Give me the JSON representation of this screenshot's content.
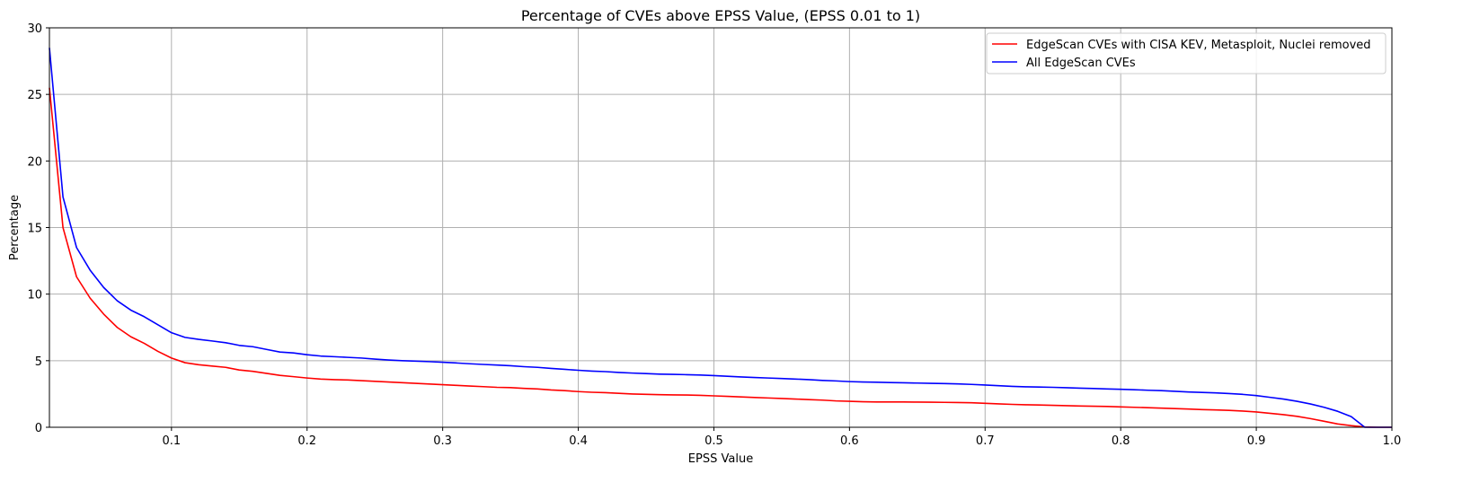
{
  "chart_data": {
    "type": "line",
    "title": "Percentage of CVEs above EPSS Value, (EPSS 0.01 to 1)",
    "xlabel": "EPSS Value",
    "ylabel": "Percentage",
    "xlim": [
      0.01,
      1.0
    ],
    "ylim": [
      0,
      30
    ],
    "xticks": [
      "0.1",
      "0.2",
      "0.3",
      "0.4",
      "0.5",
      "0.6",
      "0.7",
      "0.8",
      "0.9",
      "1.0"
    ],
    "yticks": [
      "0",
      "5",
      "10",
      "15",
      "20",
      "25",
      "30"
    ],
    "grid": true,
    "legend_position": "top-right",
    "x": [
      0.01,
      0.02,
      0.03,
      0.04,
      0.05,
      0.06,
      0.07,
      0.08,
      0.09,
      0.1,
      0.11,
      0.12,
      0.13,
      0.14,
      0.15,
      0.16,
      0.17,
      0.18,
      0.19,
      0.2,
      0.21,
      0.22,
      0.23,
      0.24,
      0.25,
      0.26,
      0.27,
      0.28,
      0.29,
      0.3,
      0.31,
      0.32,
      0.33,
      0.34,
      0.35,
      0.36,
      0.37,
      0.38,
      0.39,
      0.4,
      0.41,
      0.42,
      0.43,
      0.44,
      0.45,
      0.46,
      0.47,
      0.48,
      0.49,
      0.5,
      0.51,
      0.52,
      0.53,
      0.54,
      0.55,
      0.56,
      0.57,
      0.58,
      0.59,
      0.6,
      0.61,
      0.62,
      0.63,
      0.64,
      0.65,
      0.66,
      0.67,
      0.68,
      0.69,
      0.7,
      0.71,
      0.72,
      0.73,
      0.74,
      0.75,
      0.76,
      0.77,
      0.78,
      0.79,
      0.8,
      0.81,
      0.82,
      0.83,
      0.84,
      0.85,
      0.86,
      0.87,
      0.88,
      0.89,
      0.9,
      0.91,
      0.92,
      0.93,
      0.94,
      0.95,
      0.96,
      0.97,
      0.98,
      0.99,
      1.0
    ],
    "series": [
      {
        "name": "EdgeScan CVEs with CISA KEV, Metasploit, Nuclei removed",
        "color": "#ff0000",
        "values": [
          25.5,
          15.0,
          11.3,
          9.7,
          8.5,
          7.5,
          6.8,
          6.3,
          5.7,
          5.2,
          4.85,
          4.7,
          4.6,
          4.5,
          4.3,
          4.2,
          4.05,
          3.9,
          3.8,
          3.7,
          3.62,
          3.58,
          3.55,
          3.5,
          3.45,
          3.4,
          3.35,
          3.3,
          3.25,
          3.2,
          3.15,
          3.1,
          3.05,
          3.0,
          2.98,
          2.92,
          2.88,
          2.8,
          2.75,
          2.68,
          2.63,
          2.6,
          2.55,
          2.5,
          2.47,
          2.45,
          2.43,
          2.42,
          2.4,
          2.36,
          2.32,
          2.28,
          2.24,
          2.2,
          2.16,
          2.12,
          2.08,
          2.04,
          1.98,
          1.95,
          1.92,
          1.9,
          1.9,
          1.9,
          1.89,
          1.88,
          1.87,
          1.86,
          1.84,
          1.8,
          1.76,
          1.72,
          1.69,
          1.67,
          1.65,
          1.62,
          1.6,
          1.58,
          1.56,
          1.53,
          1.5,
          1.47,
          1.44,
          1.4,
          1.37,
          1.33,
          1.3,
          1.27,
          1.22,
          1.15,
          1.05,
          0.95,
          0.82,
          0.65,
          0.45,
          0.25,
          0.12,
          0.02,
          0.0,
          0.0
        ]
      },
      {
        "name": "All EdgeScan CVEs",
        "color": "#0000ff",
        "values": [
          28.5,
          17.3,
          13.5,
          11.8,
          10.5,
          9.5,
          8.8,
          8.3,
          7.7,
          7.1,
          6.75,
          6.6,
          6.48,
          6.35,
          6.15,
          6.05,
          5.85,
          5.65,
          5.58,
          5.45,
          5.35,
          5.3,
          5.25,
          5.2,
          5.12,
          5.05,
          5.0,
          4.97,
          4.93,
          4.88,
          4.83,
          4.77,
          4.72,
          4.67,
          4.62,
          4.55,
          4.5,
          4.42,
          4.35,
          4.28,
          4.22,
          4.18,
          4.12,
          4.07,
          4.03,
          3.99,
          3.97,
          3.95,
          3.92,
          3.88,
          3.83,
          3.78,
          3.74,
          3.7,
          3.66,
          3.62,
          3.58,
          3.52,
          3.48,
          3.43,
          3.4,
          3.38,
          3.36,
          3.34,
          3.32,
          3.3,
          3.28,
          3.26,
          3.22,
          3.17,
          3.12,
          3.07,
          3.04,
          3.02,
          3.0,
          2.97,
          2.94,
          2.91,
          2.88,
          2.85,
          2.82,
          2.78,
          2.75,
          2.7,
          2.65,
          2.62,
          2.58,
          2.53,
          2.47,
          2.38,
          2.25,
          2.12,
          1.95,
          1.75,
          1.5,
          1.2,
          0.8,
          0.0,
          0.0,
          0.0
        ]
      }
    ]
  }
}
